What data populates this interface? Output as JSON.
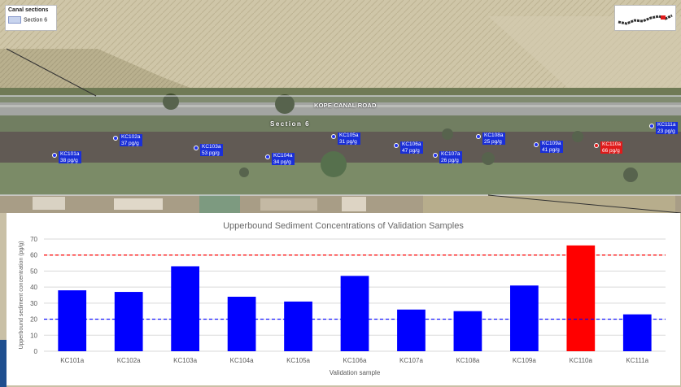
{
  "map": {
    "legend_title": "Canal sections",
    "legend_item": "Section 6",
    "road_label": "KOPE CANAL ROAD",
    "section_label": "Section 6",
    "samples": [
      {
        "id": "KC101a",
        "conc": "38 pg/g",
        "alert": false
      },
      {
        "id": "KC102a",
        "conc": "37 pg/g",
        "alert": false
      },
      {
        "id": "KC103a",
        "conc": "53 pg/g",
        "alert": false
      },
      {
        "id": "KC104a",
        "conc": "34 pg/g",
        "alert": false
      },
      {
        "id": "KC105a",
        "conc": "31 pg/g",
        "alert": false
      },
      {
        "id": "KC106a",
        "conc": "47 pg/g",
        "alert": false
      },
      {
        "id": "KC107a",
        "conc": "26 pg/g",
        "alert": false
      },
      {
        "id": "KC108a",
        "conc": "25 pg/g",
        "alert": false
      },
      {
        "id": "KC109a",
        "conc": "41 pg/g",
        "alert": false
      },
      {
        "id": "KC110a",
        "conc": "66 pg/g",
        "alert": true
      },
      {
        "id": "KC111a",
        "conc": "23 pg/g",
        "alert": false
      }
    ]
  },
  "chart_data": {
    "type": "bar",
    "title": "Upperbound Sediment Concentrations of Validation Samples",
    "xlabel": "Validation sample",
    "ylabel": "Upperbound sediment concentration (pg/g)",
    "categories": [
      "KC101a",
      "KC102a",
      "KC103a",
      "KC104a",
      "KC105a",
      "KC106a",
      "KC107a",
      "KC108a",
      "KC109a",
      "KC110a",
      "KC111a"
    ],
    "values": [
      38,
      37,
      53,
      34,
      31,
      47,
      26,
      25,
      41,
      66,
      23
    ],
    "bar_colors": [
      "#0000ff",
      "#0000ff",
      "#0000ff",
      "#0000ff",
      "#0000ff",
      "#0000ff",
      "#0000ff",
      "#0000ff",
      "#0000ff",
      "#ff0000",
      "#0000ff"
    ],
    "ylim": [
      0,
      70
    ],
    "yticks": [
      0,
      10,
      20,
      30,
      40,
      50,
      60,
      70
    ],
    "reference_lines": [
      {
        "value": 60,
        "color": "#ff0000",
        "style": "dashed"
      },
      {
        "value": 20,
        "color": "#0000ff",
        "style": "dashed"
      }
    ],
    "grid": true
  }
}
